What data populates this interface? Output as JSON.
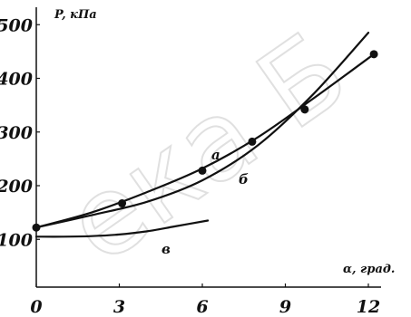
{
  "chart_data": {
    "type": "line",
    "title": "",
    "xlabel": "α, град.",
    "ylabel": "P, кПа",
    "xlim": [
      0,
      12.5
    ],
    "ylim": [
      95,
      530
    ],
    "x_ticks": [
      "0",
      "3",
      "6",
      "9",
      "12"
    ],
    "y_ticks": [
      "100",
      "200",
      "300",
      "400",
      "500"
    ],
    "grid": false,
    "watermark": "ека Б",
    "series": [
      {
        "name": "а",
        "x": [
          0,
          2,
          4,
          6,
          8,
          10,
          12.2
        ],
        "y": [
          122,
          150,
          188,
          232,
          290,
          362,
          445
        ]
      },
      {
        "name": "б",
        "x": [
          0,
          2,
          4,
          6,
          8,
          10,
          12
        ],
        "y": [
          122,
          145,
          170,
          210,
          275,
          370,
          485
        ]
      },
      {
        "name": "в",
        "x": [
          0,
          1,
          2,
          3,
          4,
          5,
          6.2
        ],
        "y": [
          105,
          105,
          106,
          109,
          115,
          124,
          135
        ]
      }
    ],
    "points": {
      "x": [
        0,
        3.1,
        6.0,
        7.8,
        9.7,
        12.2
      ],
      "y": [
        122,
        167,
        228,
        282,
        342,
        445
      ]
    }
  }
}
